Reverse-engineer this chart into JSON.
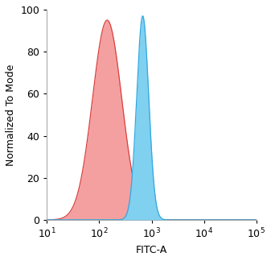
{
  "xlabel": "FITC-A",
  "ylabel": "Normalized To Mode",
  "xlim": [
    10,
    100000
  ],
  "ylim": [
    0,
    100
  ],
  "yticks": [
    0,
    20,
    40,
    60,
    80,
    100
  ],
  "xtick_positions": [
    10,
    100,
    1000,
    10000,
    100000
  ],
  "xtick_labels": [
    "$10^1$",
    "$10^2$",
    "$10^3$",
    "$10^4$",
    "$10^5$"
  ],
  "red_peak_log": 2.15,
  "red_peak_height": 95,
  "red_sigma_log": 0.28,
  "blue_peak_log": 2.83,
  "blue_peak_height": 97,
  "blue_sigma_log": 0.115,
  "red_fill_color": "#f5a0a0",
  "red_edge_color": "#d94040",
  "blue_fill_color": "#80d0f0",
  "blue_edge_color": "#30a8e0",
  "background_color": "#ffffff",
  "axis_bg_color": "#ffffff",
  "font_size": 9,
  "label_font_size": 9,
  "spine_color": "#aaaaaa",
  "spine_linewidth": 0.8
}
